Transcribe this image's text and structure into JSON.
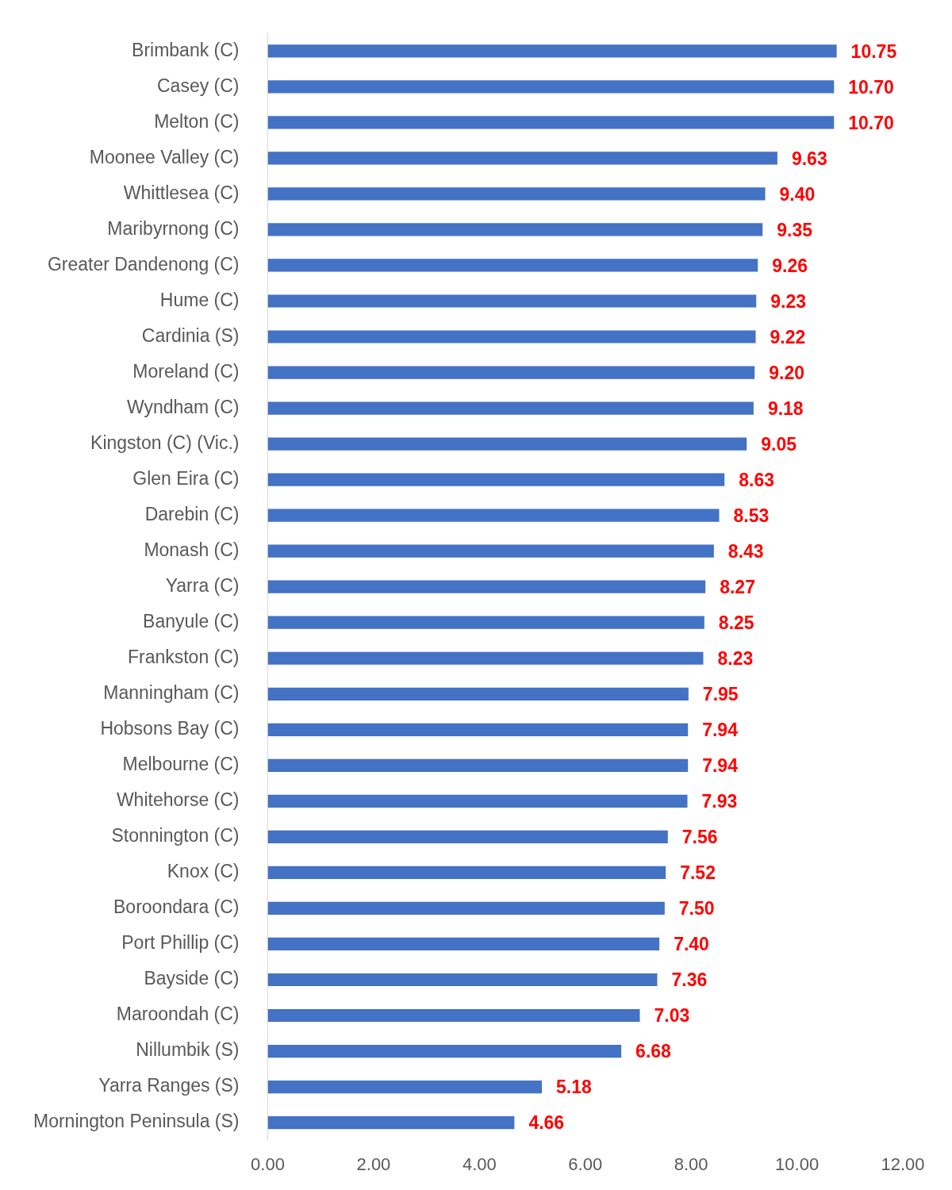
{
  "chart_data": {
    "type": "bar",
    "orientation": "horizontal",
    "categories": [
      "Brimbank (C)",
      "Casey (C)",
      "Melton (C)",
      "Moonee Valley (C)",
      "Whittlesea (C)",
      "Maribyrnong (C)",
      "Greater Dandenong (C)",
      "Hume (C)",
      "Cardinia (S)",
      "Moreland (C)",
      "Wyndham (C)",
      "Kingston (C) (Vic.)",
      "Glen Eira (C)",
      "Darebin (C)",
      "Monash (C)",
      "Yarra (C)",
      "Banyule (C)",
      "Frankston (C)",
      "Manningham (C)",
      "Hobsons Bay (C)",
      "Melbourne (C)",
      "Whitehorse (C)",
      "Stonnington (C)",
      "Knox (C)",
      "Boroondara (C)",
      "Port Phillip (C)",
      "Bayside (C)",
      "Maroondah (C)",
      "Nillumbik (S)",
      "Yarra Ranges (S)",
      "Mornington Peninsula (S)"
    ],
    "values": [
      10.75,
      10.7,
      10.7,
      9.63,
      9.4,
      9.35,
      9.26,
      9.23,
      9.22,
      9.2,
      9.18,
      9.05,
      8.63,
      8.53,
      8.43,
      8.27,
      8.25,
      8.23,
      7.95,
      7.94,
      7.94,
      7.93,
      7.56,
      7.52,
      7.5,
      7.4,
      7.36,
      7.03,
      6.68,
      5.18,
      4.66
    ],
    "value_labels": [
      "10.75",
      "10.70",
      "10.70",
      "9.63",
      "9.40",
      "9.35",
      "9.26",
      "9.23",
      "9.22",
      "9.20",
      "9.18",
      "9.05",
      "8.63",
      "8.53",
      "8.43",
      "8.27",
      "8.25",
      "8.23",
      "7.95",
      "7.94",
      "7.94",
      "7.93",
      "7.56",
      "7.52",
      "7.50",
      "7.40",
      "7.36",
      "7.03",
      "6.68",
      "5.18",
      "4.66"
    ],
    "data_labels": true,
    "color": "#4472c4",
    "xlim": [
      0,
      12
    ],
    "xticks": [
      {
        "value": 0,
        "label": "0.00"
      },
      {
        "value": 2,
        "label": "2.00"
      },
      {
        "value": 4,
        "label": "4.00"
      },
      {
        "value": 6,
        "label": "6.00"
      },
      {
        "value": 8,
        "label": "8.00"
      },
      {
        "value": 10,
        "label": "10.00"
      },
      {
        "value": 12,
        "label": "12.00"
      }
    ],
    "grid": false
  }
}
